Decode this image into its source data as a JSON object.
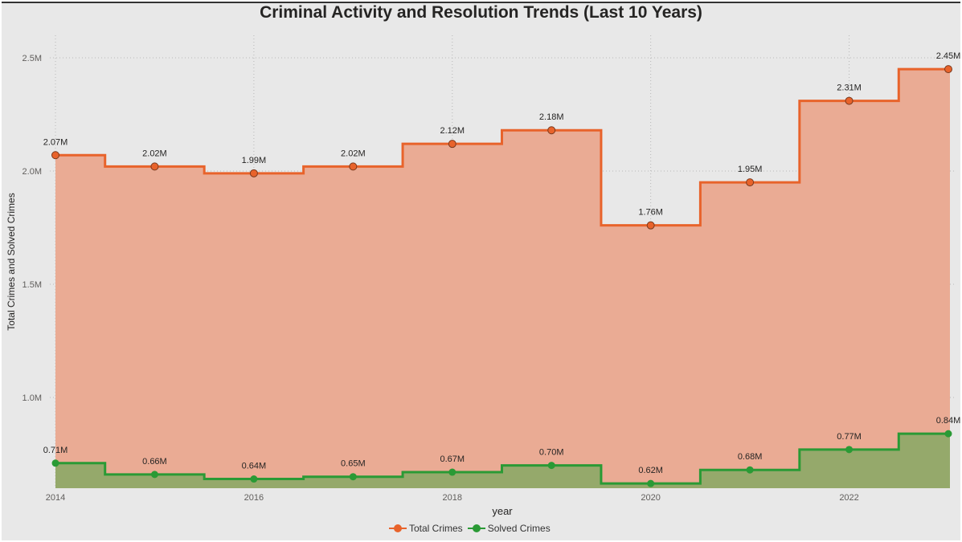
{
  "chart_data": {
    "type": "area",
    "title": "Criminal Activity and Resolution Trends (Last 10 Years)",
    "xlabel": "year",
    "ylabel": "Total Crimes and Solved Crimes",
    "x": [
      2014,
      2015,
      2016,
      2017,
      2018,
      2019,
      2020,
      2021,
      2022,
      2023
    ],
    "x_ticks": [
      "2014",
      "2016",
      "2018",
      "2020",
      "2022"
    ],
    "y_ticks": [
      "1.0M",
      "1.5M",
      "2.0M",
      "2.5M"
    ],
    "y_tick_values": [
      1000000,
      1500000,
      2000000,
      2500000
    ],
    "ylim": [
      600000,
      2600000
    ],
    "step": true,
    "grid": true,
    "legend_position": "bottom",
    "series": [
      {
        "name": "Total Crimes",
        "color": "#e8632b",
        "fill": "#eaab94",
        "values": [
          2070000,
          2020000,
          1990000,
          2020000,
          2120000,
          2180000,
          1760000,
          1950000,
          2310000,
          2450000
        ],
        "labels": [
          "2.07M",
          "2.02M",
          "1.99M",
          "2.02M",
          "2.12M",
          "2.18M",
          "1.76M",
          "1.95M",
          "2.31M",
          "2.45M"
        ]
      },
      {
        "name": "Solved Crimes",
        "color": "#2a9a35",
        "fill": "#95a96b",
        "values": [
          710000,
          660000,
          640000,
          650000,
          670000,
          700000,
          620000,
          680000,
          770000,
          840000
        ],
        "labels": [
          "0.71M",
          "0.66M",
          "0.64M",
          "0.65M",
          "0.67M",
          "0.70M",
          "0.62M",
          "0.68M",
          "0.77M",
          "0.84M"
        ]
      }
    ]
  }
}
